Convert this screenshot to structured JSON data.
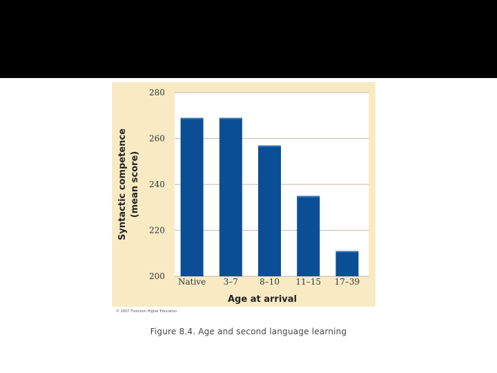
{
  "chart_data": {
    "type": "bar",
    "categories": [
      "Native",
      "3–7",
      "8–10",
      "11–15",
      "17–39"
    ],
    "values": [
      269,
      269,
      257,
      235,
      211
    ],
    "xlabel": "Age at arrival",
    "ylabel_line1": "Syntactic competence",
    "ylabel_line2": "(mean score)",
    "ylim": [
      200,
      280
    ],
    "yticks": [
      200,
      220,
      240,
      260,
      280
    ],
    "grid": true,
    "colors": {
      "background": "#f8ebc4",
      "plot_area": "#ffffff",
      "bar": "#0a4f95",
      "gridline": "#c9c3b3"
    }
  },
  "copyright": "© 2007 Thomson Higher Education",
  "caption": "Figure 8.4. Age and second language learning"
}
